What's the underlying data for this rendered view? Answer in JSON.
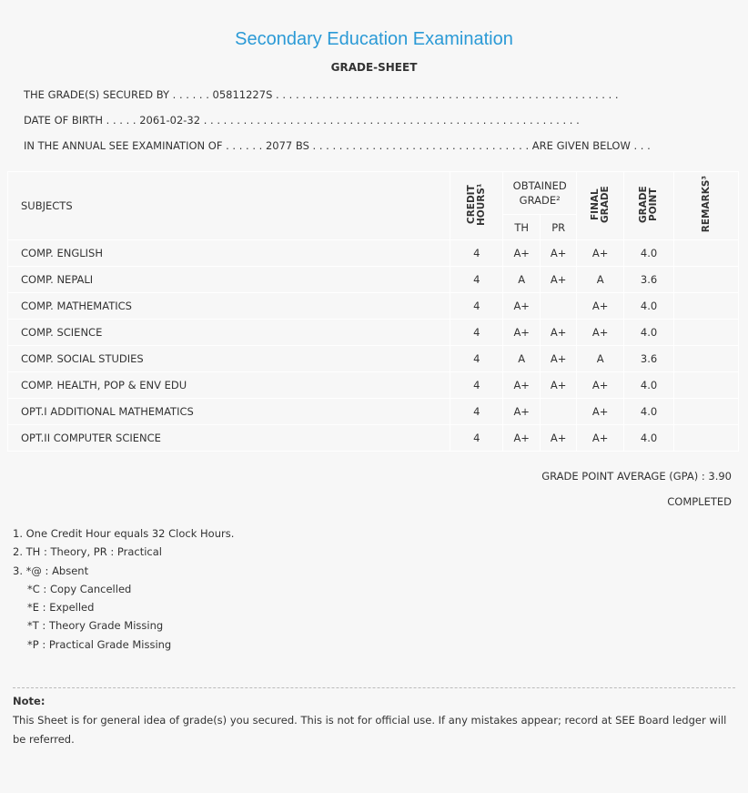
{
  "title": "Secondary Education Examination",
  "subtitle": "GRADE-SHEET",
  "info": {
    "secured_by": "THE GRADE(S) SECURED BY . . . . . . 05811227S . . . . . . . . . . . . . . . . . . . . . . . . . . . . . . . . . . . . . . . . . . . . . . . . . . . .",
    "dob": "DATE OF BIRTH . . . . . 2061-02-32 . . . . . . . . . . . . . . . . . . . . . . . . . . . . . . . . . . . . . . . . . . . . . . . . . . . . . . . . .",
    "exam": "IN THE ANNUAL SEE EXAMINATION OF . . . . . . 2077 BS . . . . . . . . . . . . . . . . . . . . . . . . . . . . . . . . . ARE GIVEN BELOW . . ."
  },
  "table": {
    "headers": {
      "subjects": "SUBJECTS",
      "credit": "CREDIT HOURS¹",
      "obtained": "OBTAINED GRADE²",
      "th": "TH",
      "pr": "PR",
      "final": "FINAL GRADE",
      "gp": "GRADE POINT",
      "remarks": "REMARKS³"
    },
    "rows": [
      {
        "subject": "COMP. ENGLISH",
        "credit": "4",
        "th": "A+",
        "pr": "A+",
        "final": "A+",
        "gp": "4.0",
        "remarks": ""
      },
      {
        "subject": "COMP. NEPALI",
        "credit": "4",
        "th": "A",
        "pr": "A+",
        "final": "A",
        "gp": "3.6",
        "remarks": ""
      },
      {
        "subject": "COMP. MATHEMATICS",
        "credit": "4",
        "th": "A+",
        "pr": "",
        "final": "A+",
        "gp": "4.0",
        "remarks": ""
      },
      {
        "subject": "COMP. SCIENCE",
        "credit": "4",
        "th": "A+",
        "pr": "A+",
        "final": "A+",
        "gp": "4.0",
        "remarks": ""
      },
      {
        "subject": "COMP. SOCIAL STUDIES",
        "credit": "4",
        "th": "A",
        "pr": "A+",
        "final": "A",
        "gp": "3.6",
        "remarks": ""
      },
      {
        "subject": "COMP. HEALTH, POP & ENV EDU",
        "credit": "4",
        "th": "A+",
        "pr": "A+",
        "final": "A+",
        "gp": "4.0",
        "remarks": ""
      },
      {
        "subject": "OPT.I ADDITIONAL MATHEMATICS",
        "credit": "4",
        "th": "A+",
        "pr": "",
        "final": "A+",
        "gp": "4.0",
        "remarks": ""
      },
      {
        "subject": "OPT.II COMPUTER SCIENCE",
        "credit": "4",
        "th": "A+",
        "pr": "A+",
        "final": "A+",
        "gp": "4.0",
        "remarks": ""
      }
    ]
  },
  "gpa": "GRADE POINT AVERAGE (GPA) : 3.90",
  "status": "COMPLETED",
  "legend": [
    "1. One Credit Hour equals 32 Clock Hours.",
    "2. TH : Theory, PR : Practical",
    "3. *@ : Absent"
  ],
  "legend_sub": [
    "*C : Copy Cancelled",
    "*E : Expelled",
    "*T : Theory Grade Missing",
    "*P : Practical Grade Missing"
  ],
  "note": {
    "label": "Note:",
    "text": "This Sheet is for general idea of grade(s) you secured. This is not for official use. If any mistakes appear; record at SEE Board ledger will be referred."
  },
  "colors": {
    "title": "#2b9ad6"
  }
}
